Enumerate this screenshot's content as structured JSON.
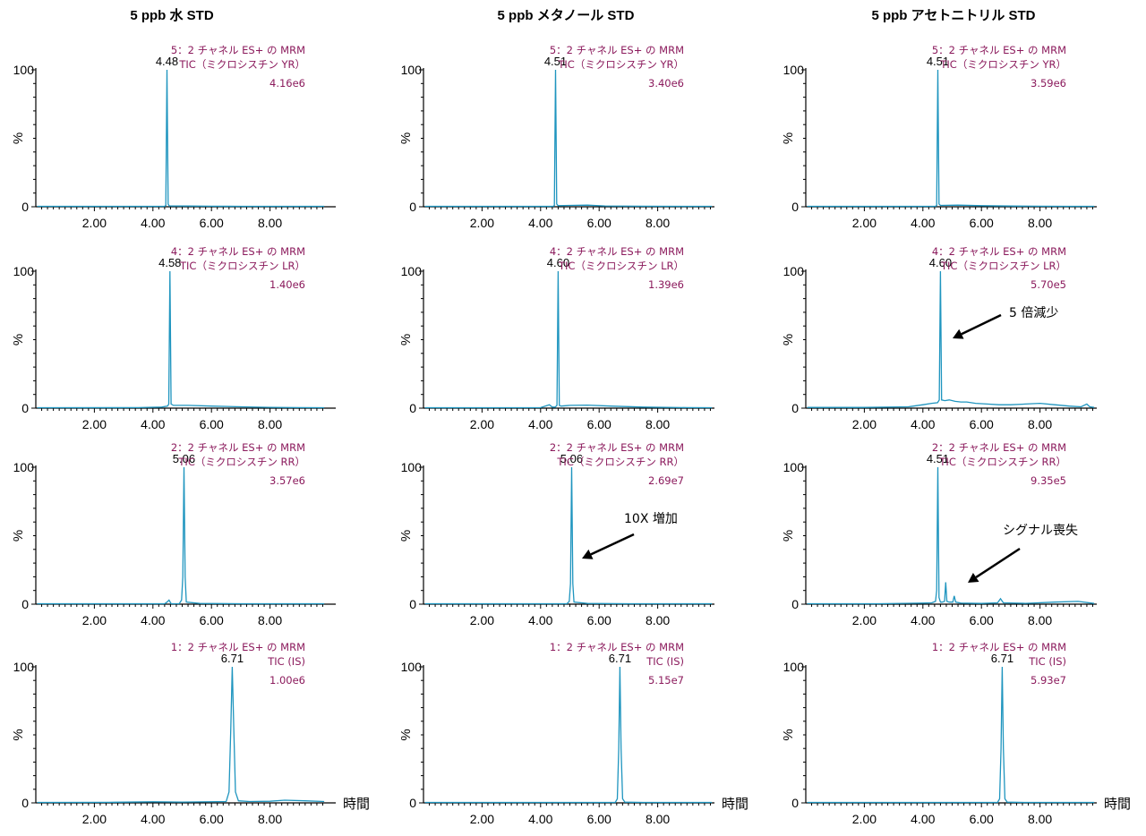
{
  "chart_data": {
    "type": "line",
    "columns": [
      {
        "title": "5 ppb 水 STD"
      },
      {
        "title": "5 ppb メタノール STD"
      },
      {
        "title": "5 ppb アセトニトリル STD"
      }
    ],
    "x_axis": {
      "label": "時間",
      "xlim": [
        0,
        9.9
      ],
      "ticks": [
        2.0,
        4.0,
        6.0,
        8.0
      ],
      "tick_labels": [
        "2.00",
        "4.00",
        "6.00",
        "8.00"
      ]
    },
    "y_axis": {
      "label": "%",
      "ylim": [
        0,
        100
      ],
      "tick_labels": [
        "0",
        "100"
      ]
    },
    "panels": [
      {
        "row": 0,
        "col": 0,
        "channel": "5：2 チャネル ES+ の MRM",
        "compound": "TIC（ミクロシスチン YR）",
        "intensity": "4.16e6",
        "peak_time": 4.48,
        "peak_label": "4.48",
        "series": [
          {
            "name": "TIC",
            "x": [
              0.05,
              4.4,
              4.44,
              4.48,
              4.52,
              4.56,
              5.2,
              6.0,
              7.0,
              8.0,
              9.0,
              9.85
            ],
            "y": [
              0.3,
              0.3,
              1,
              100,
              2,
              0.6,
              0.5,
              0.4,
              0.3,
              0.3,
              0.3,
              0.3
            ]
          }
        ]
      },
      {
        "row": 0,
        "col": 1,
        "channel": "5：2 チャネル ES+ の MRM",
        "compound": "TIC（ミクロシスチン YR）",
        "intensity": "3.40e6",
        "peak_time": 4.51,
        "peak_label": "4.51",
        "series": [
          {
            "name": "TIC",
            "x": [
              0.05,
              4.43,
              4.47,
              4.51,
              4.55,
              4.6,
              5.0,
              5.6,
              6.2,
              7.5,
              9.0,
              9.85
            ],
            "y": [
              0.3,
              0.3,
              1,
              100,
              2,
              0.8,
              1.0,
              1.2,
              0.6,
              0.4,
              0.3,
              0.3
            ]
          }
        ]
      },
      {
        "row": 0,
        "col": 2,
        "channel": "5：2 チャネル ES+ の MRM",
        "compound": "TIC（ミクロシスチン YR）",
        "intensity": "3.59e6",
        "peak_time": 4.51,
        "peak_label": "4.51",
        "series": [
          {
            "name": "TIC",
            "x": [
              0.05,
              4.43,
              4.47,
              4.51,
              4.55,
              4.6,
              5.2,
              6.0,
              7.0,
              8.0,
              9.0,
              9.85
            ],
            "y": [
              0.3,
              0.3,
              1,
              100,
              2,
              1.0,
              1.2,
              0.8,
              0.5,
              0.4,
              0.3,
              0.3
            ]
          }
        ]
      },
      {
        "row": 1,
        "col": 0,
        "channel": "4：2 チャネル ES+ の MRM",
        "compound": "TIC（ミクロシスチン LR）",
        "intensity": "1.40e6",
        "peak_time": 4.58,
        "peak_label": "4.58",
        "series": [
          {
            "name": "TIC",
            "x": [
              0.05,
              3.5,
              4.3,
              4.5,
              4.54,
              4.58,
              4.62,
              4.7,
              5.2,
              6.0,
              7.0,
              8.0,
              9.0,
              9.85
            ],
            "y": [
              0.3,
              0.4,
              0.8,
              1.5,
              3,
              100,
              3,
              2.0,
              2.0,
              1.5,
              1.0,
              0.6,
              0.4,
              0.3
            ]
          }
        ]
      },
      {
        "row": 1,
        "col": 1,
        "channel": "4：2 チャネル ES+ の MRM",
        "compound": "TIC（ミクロシスチン LR）",
        "intensity": "1.39e6",
        "peak_time": 4.6,
        "peak_label": "4.60",
        "series": [
          {
            "name": "TIC",
            "x": [
              0.05,
              4.0,
              4.3,
              4.4,
              4.5,
              4.56,
              4.6,
              4.64,
              4.7,
              5.0,
              5.6,
              6.4,
              7.5,
              9.0,
              9.85
            ],
            "y": [
              0.3,
              0.4,
              2.5,
              0.8,
              0.8,
              2,
              100,
              2,
              1.5,
              2.0,
              2.2,
              1.5,
              0.8,
              0.4,
              0.3
            ]
          }
        ]
      },
      {
        "row": 1,
        "col": 2,
        "channel": "4：2 チャネル ES+ の MRM",
        "compound": "TIC（ミクロシスチン LR）",
        "intensity": "5.70e5",
        "peak_time": 4.6,
        "peak_label": "4.60",
        "annotation": "5 倍減少",
        "series": [
          {
            "name": "TIC",
            "x": [
              0.05,
              2.0,
              3.5,
              4.0,
              4.3,
              4.5,
              4.56,
              4.6,
              4.64,
              4.75,
              4.9,
              5.1,
              5.3,
              5.5,
              5.8,
              6.2,
              6.6,
              7.0,
              7.5,
              8.0,
              8.5,
              9.0,
              9.4,
              9.6,
              9.7,
              9.85
            ],
            "y": [
              0.5,
              0.5,
              1.0,
              2.5,
              3.5,
              4.0,
              6,
              100,
              6,
              5.5,
              6.0,
              5.0,
              4.5,
              4.5,
              3.5,
              3.0,
              2.5,
              2.5,
              3.0,
              3.5,
              2.5,
              1.5,
              1.0,
              3.0,
              1.0,
              0.5
            ]
          }
        ]
      },
      {
        "row": 2,
        "col": 0,
        "channel": "2：2 チャネル ES+ の MRM",
        "compound": "TIC（ミクロシスチン RR）",
        "intensity": "3.57e6",
        "peak_time": 5.06,
        "peak_label": "5.06",
        "series": [
          {
            "name": "TIC",
            "x": [
              0.05,
              4.4,
              4.48,
              4.55,
              4.62,
              4.9,
              4.98,
              5.02,
              5.06,
              5.1,
              5.14,
              5.6,
              7.0,
              8.5,
              9.85
            ],
            "y": [
              0.3,
              0.3,
              1.5,
              3,
              0.3,
              0.3,
              3,
              20,
              100,
              20,
              1.5,
              0.5,
              0.3,
              0.3,
              0.3
            ]
          }
        ]
      },
      {
        "row": 2,
        "col": 1,
        "channel": "2：2 チャネル ES+ の MRM",
        "compound": "TIC（ミクロシスチン RR）",
        "intensity": "2.69e7",
        "peak_time": 5.06,
        "peak_label": "5.06",
        "annotation": "10X 増加",
        "series": [
          {
            "name": "TIC",
            "x": [
              0.05,
              4.9,
              4.98,
              5.02,
              5.06,
              5.1,
              5.14,
              5.6,
              7.0,
              8.5,
              9.85
            ],
            "y": [
              0.3,
              0.3,
              2,
              15,
              100,
              15,
              1.5,
              0.5,
              0.3,
              0.3,
              0.3
            ]
          }
        ]
      },
      {
        "row": 2,
        "col": 2,
        "channel": "2：2 チャネル ES+ の MRM",
        "compound": "TIC（ミクロシスチン RR）",
        "intensity": "9.35e5",
        "peak_time": 4.51,
        "peak_label": "4.51",
        "annotation": "シグナル喪失",
        "series": [
          {
            "name": "TIC",
            "x": [
              0.05,
              2.5,
              4.0,
              4.3,
              4.43,
              4.47,
              4.51,
              4.55,
              4.6,
              4.66,
              4.74,
              4.78,
              4.82,
              4.9,
              5.02,
              5.07,
              5.12,
              5.3,
              6.0,
              6.55,
              6.65,
              6.75,
              7.5,
              8.5,
              9.3,
              9.85
            ],
            "y": [
              0.3,
              0.3,
              0.8,
              1.0,
              2,
              10,
              100,
              5,
              1.5,
              1.5,
              2,
              16,
              2,
              1.5,
              1.5,
              6,
              1.5,
              0.8,
              0.5,
              1.0,
              4,
              1.0,
              0.6,
              1.5,
              2.0,
              0.5
            ]
          }
        ]
      },
      {
        "row": 3,
        "col": 0,
        "channel": "1：2 チャネル ES+ の MRM",
        "compound": "TIC (IS)",
        "intensity": "1.00e6",
        "peak_time": 6.71,
        "peak_label": "6.71",
        "series": [
          {
            "name": "TIC",
            "x": [
              0.05,
              2.5,
              4.0,
              5.0,
              6.5,
              6.6,
              6.66,
              6.71,
              6.76,
              6.82,
              6.92,
              7.3,
              8.0,
              8.5,
              9.2,
              9.85
            ],
            "y": [
              0.3,
              0.4,
              0.8,
              0.6,
              1,
              8,
              55,
              100,
              55,
              8,
              1.5,
              1.0,
              1.2,
              2.0,
              1.5,
              1.0
            ]
          }
        ]
      },
      {
        "row": 3,
        "col": 1,
        "channel": "1：2 チャネル ES+ の MRM",
        "compound": "TIC (IS)",
        "intensity": "5.15e7",
        "peak_time": 6.71,
        "peak_label": "6.71",
        "series": [
          {
            "name": "TIC",
            "x": [
              0.05,
              6.55,
              6.62,
              6.67,
              6.71,
              6.75,
              6.8,
              6.88,
              7.5,
              9.85
            ],
            "y": [
              0.3,
              0.3,
              3,
              40,
              100,
              40,
              3,
              0.5,
              0.3,
              0.3
            ]
          }
        ]
      },
      {
        "row": 3,
        "col": 2,
        "channel": "1：2 チャネル ES+ の MRM",
        "compound": "TIC (IS)",
        "intensity": "5.93e7",
        "peak_time": 6.71,
        "peak_label": "6.71",
        "series": [
          {
            "name": "TIC",
            "x": [
              0.05,
              6.55,
              6.62,
              6.67,
              6.71,
              6.75,
              6.8,
              6.88,
              7.5,
              9.85
            ],
            "y": [
              0.3,
              0.3,
              3,
              40,
              100,
              40,
              3,
              0.5,
              0.3,
              0.3
            ]
          }
        ]
      }
    ]
  },
  "colors": {
    "trace": "#1f95bf",
    "info_text": "#8b1a5c",
    "axis": "#000000"
  }
}
